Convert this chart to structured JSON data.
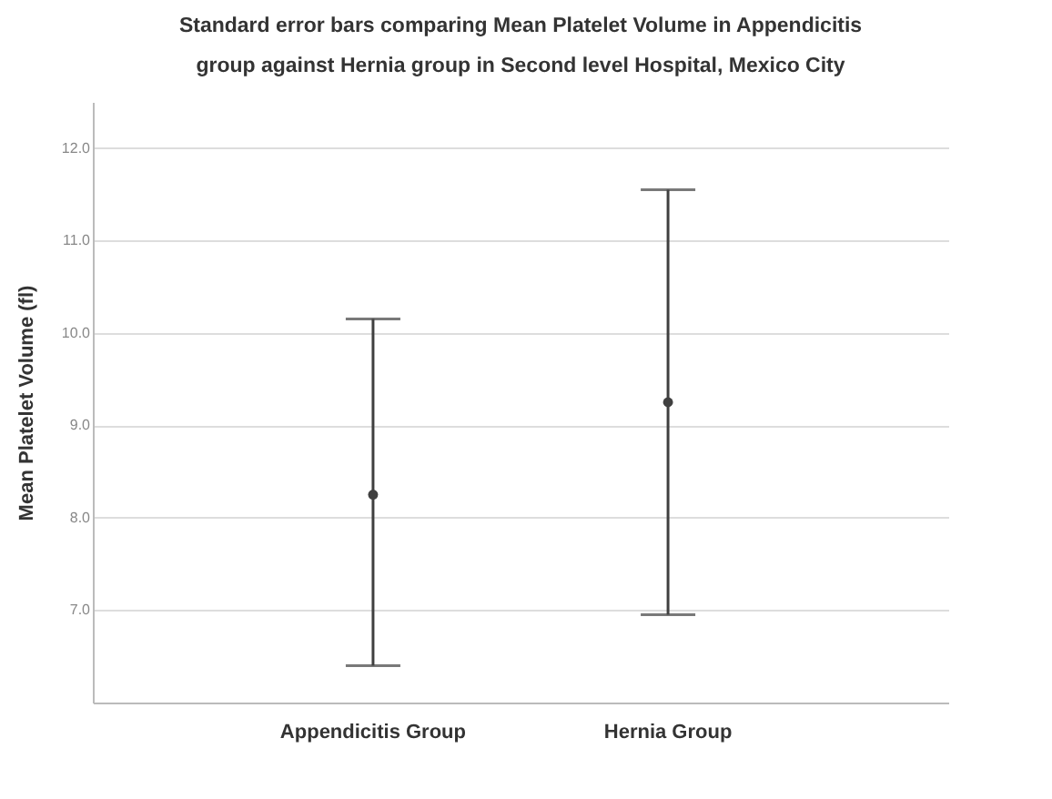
{
  "chart_data": {
    "type": "scatter",
    "title": "Standard error bars comparing Mean Platelet Volume in Appendicitis group against Hernia group in Second level Hospital, Mexico City",
    "ylabel": "Mean Platelet Volume (fl)",
    "categories": [
      "Appendicitis Group",
      "Hernia Group"
    ],
    "series": [
      {
        "color": "#404040",
        "values": [
          8.25,
          9.25
        ],
        "errors": [
          [
            6.4,
            10.15
          ],
          [
            6.95,
            11.55
          ]
        ]
      }
    ],
    "ylim": [
      6,
      12.5
    ],
    "yticks": [
      {
        "value": 7,
        "label": "7.0"
      },
      {
        "value": 8,
        "label": "8.0"
      },
      {
        "value": 9,
        "label": "9.0"
      },
      {
        "value": 10,
        "label": "10.0"
      },
      {
        "value": 11,
        "label": "11.0"
      },
      {
        "value": 12,
        "label": "12.0"
      }
    ],
    "grid": "y",
    "marker": "circle"
  }
}
